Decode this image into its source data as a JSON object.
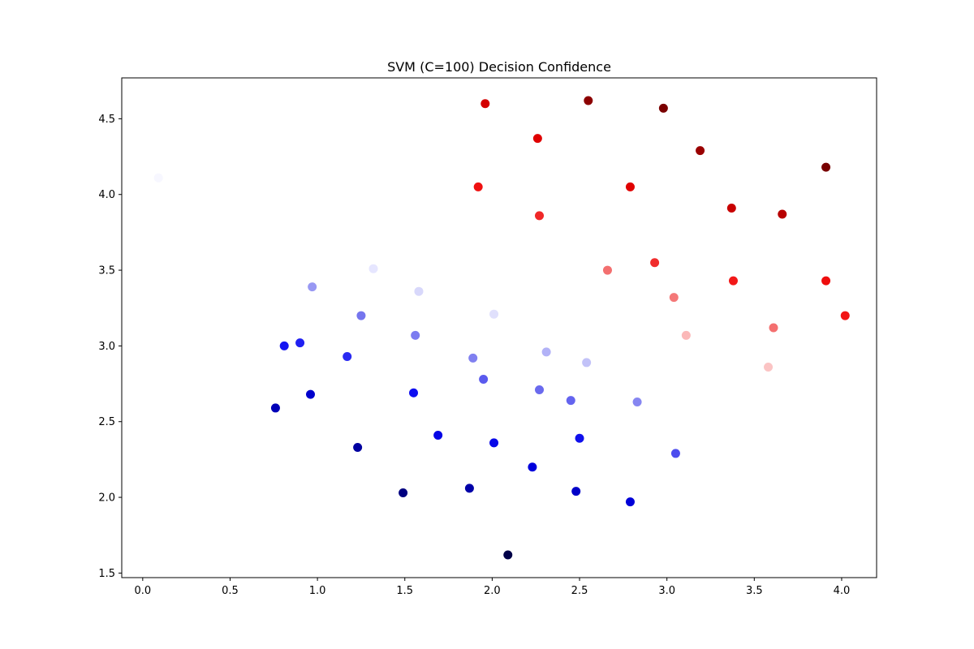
{
  "chart_data": {
    "type": "scatter",
    "title": "SVM (C=100) Decision Confidence",
    "xlabel": "",
    "ylabel": "",
    "xlim": [
      -0.12,
      4.2
    ],
    "ylim": [
      1.47,
      4.77
    ],
    "xticks": [
      0.0,
      0.5,
      1.0,
      1.5,
      2.0,
      2.5,
      3.0,
      3.5,
      4.0
    ],
    "yticks": [
      1.5,
      2.0,
      2.5,
      3.0,
      3.5,
      4.0,
      4.5
    ],
    "xtick_labels": [
      "0.0",
      "0.5",
      "1.0",
      "1.5",
      "2.0",
      "2.5",
      "3.0",
      "3.5",
      "4.0"
    ],
    "ytick_labels": [
      "1.5",
      "2.0",
      "2.5",
      "3.0",
      "3.5",
      "4.0",
      "4.5"
    ],
    "grid": false,
    "legend": "none",
    "colormap": "seismic",
    "points": [
      {
        "x": 0.09,
        "y": 4.11,
        "color": "#f7f7ff"
      },
      {
        "x": 1.96,
        "y": 4.6,
        "color": "#d40000"
      },
      {
        "x": 2.55,
        "y": 4.62,
        "color": "#8c0000"
      },
      {
        "x": 2.98,
        "y": 4.57,
        "color": "#7a0000"
      },
      {
        "x": 2.26,
        "y": 4.37,
        "color": "#df0000"
      },
      {
        "x": 3.19,
        "y": 4.29,
        "color": "#9a0000"
      },
      {
        "x": 3.91,
        "y": 4.18,
        "color": "#780000"
      },
      {
        "x": 1.92,
        "y": 4.05,
        "color": "#ef1010"
      },
      {
        "x": 2.79,
        "y": 4.05,
        "color": "#e00000"
      },
      {
        "x": 2.27,
        "y": 3.86,
        "color": "#f02828"
      },
      {
        "x": 3.37,
        "y": 3.91,
        "color": "#c80000"
      },
      {
        "x": 3.66,
        "y": 3.87,
        "color": "#b80000"
      },
      {
        "x": 2.66,
        "y": 3.5,
        "color": "#f36f6f"
      },
      {
        "x": 2.93,
        "y": 3.55,
        "color": "#f02c2c"
      },
      {
        "x": 3.38,
        "y": 3.43,
        "color": "#f21818"
      },
      {
        "x": 3.91,
        "y": 3.43,
        "color": "#ee0d0d"
      },
      {
        "x": 3.04,
        "y": 3.32,
        "color": "#f47878"
      },
      {
        "x": 4.02,
        "y": 3.2,
        "color": "#f21515"
      },
      {
        "x": 3.61,
        "y": 3.12,
        "color": "#f47070"
      },
      {
        "x": 3.11,
        "y": 3.07,
        "color": "#fbb8b8"
      },
      {
        "x": 3.58,
        "y": 2.86,
        "color": "#fbc4c4"
      },
      {
        "x": 1.32,
        "y": 3.51,
        "color": "#e6e6ff"
      },
      {
        "x": 0.97,
        "y": 3.39,
        "color": "#9898f3"
      },
      {
        "x": 1.58,
        "y": 3.36,
        "color": "#d8d8fb"
      },
      {
        "x": 2.01,
        "y": 3.21,
        "color": "#e0e0fc"
      },
      {
        "x": 1.25,
        "y": 3.2,
        "color": "#7575ee"
      },
      {
        "x": 1.56,
        "y": 3.07,
        "color": "#7c7cf0"
      },
      {
        "x": 0.81,
        "y": 3.0,
        "color": "#1515f2"
      },
      {
        "x": 0.9,
        "y": 3.02,
        "color": "#2020f2"
      },
      {
        "x": 1.17,
        "y": 2.93,
        "color": "#2a2af2"
      },
      {
        "x": 1.89,
        "y": 2.92,
        "color": "#8080f0"
      },
      {
        "x": 2.31,
        "y": 2.96,
        "color": "#b2b2f7"
      },
      {
        "x": 2.54,
        "y": 2.89,
        "color": "#c2c2f8"
      },
      {
        "x": 1.95,
        "y": 2.78,
        "color": "#5a5aee"
      },
      {
        "x": 2.27,
        "y": 2.71,
        "color": "#6a6aee"
      },
      {
        "x": 2.45,
        "y": 2.64,
        "color": "#6464ef"
      },
      {
        "x": 2.83,
        "y": 2.63,
        "color": "#8686f1"
      },
      {
        "x": 0.76,
        "y": 2.59,
        "color": "#0000b8"
      },
      {
        "x": 0.96,
        "y": 2.68,
        "color": "#0000cc"
      },
      {
        "x": 1.55,
        "y": 2.69,
        "color": "#0e0ef0"
      },
      {
        "x": 1.69,
        "y": 2.41,
        "color": "#0505e6"
      },
      {
        "x": 2.01,
        "y": 2.36,
        "color": "#0808e8"
      },
      {
        "x": 2.5,
        "y": 2.39,
        "color": "#1010ec"
      },
      {
        "x": 3.05,
        "y": 2.29,
        "color": "#4d4dee"
      },
      {
        "x": 1.23,
        "y": 2.33,
        "color": "#0000a0"
      },
      {
        "x": 2.23,
        "y": 2.2,
        "color": "#0000dc"
      },
      {
        "x": 1.49,
        "y": 2.03,
        "color": "#000080"
      },
      {
        "x": 1.87,
        "y": 2.06,
        "color": "#0000a8"
      },
      {
        "x": 2.48,
        "y": 2.04,
        "color": "#0000c8"
      },
      {
        "x": 2.79,
        "y": 1.97,
        "color": "#0000d8"
      },
      {
        "x": 2.09,
        "y": 1.62,
        "color": "#000048"
      }
    ]
  }
}
